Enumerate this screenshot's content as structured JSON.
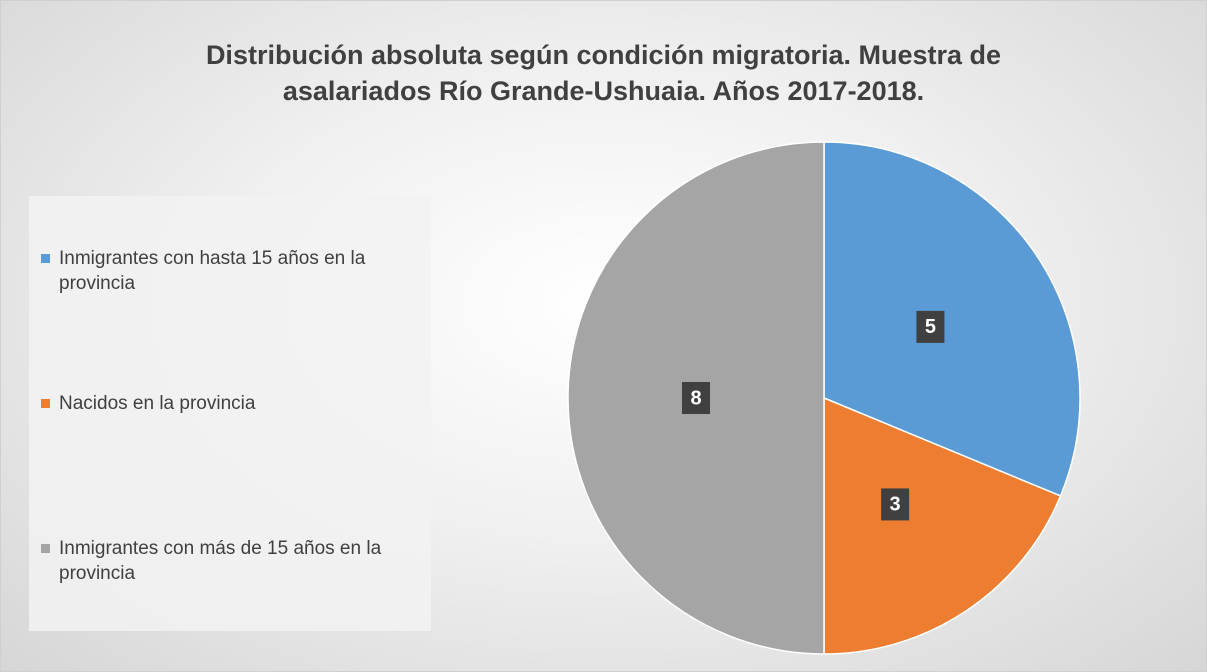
{
  "chart_data": {
    "type": "pie",
    "title": "Distribución absoluta según condición migratoria. Muestra de asalariados Río Grande-Ushuaia. Años 2017-2018.",
    "categories": [
      "Inmigrantes con hasta 15 años en la provincia",
      "Nacidos en la provincia",
      "Inmigrantes con más de 15 años en la provincia"
    ],
    "values": [
      5,
      3,
      8
    ],
    "colors": [
      "#5b9bd5",
      "#ed7d31",
      "#a5a5a5"
    ],
    "legend": "left"
  }
}
